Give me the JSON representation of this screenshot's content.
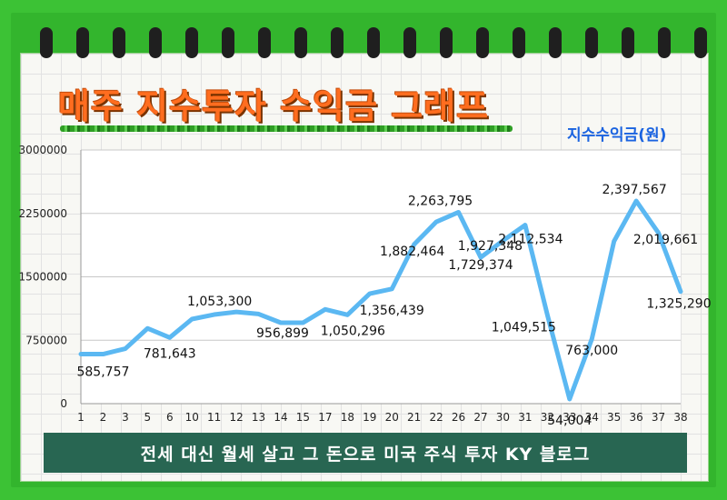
{
  "title": "매주 지수투자 수익금 그래프",
  "unit_label": "지수수익금(원)",
  "footer": "전세 대신 월세 살고 그 돈으로 미국 주식 투자 KY 블로그",
  "colors": {
    "background": "#3cc235",
    "line": "#5bb8f2",
    "title": "#ff6d1f",
    "unit": "#1a63e0",
    "footer_bg": "#286652"
  },
  "chart_data": {
    "type": "line",
    "categories": [
      "1",
      "2",
      "3",
      "5",
      "6",
      "10",
      "11",
      "12",
      "13",
      "14",
      "15",
      "17",
      "18",
      "19",
      "20",
      "21",
      "22",
      "26",
      "27",
      "30",
      "31",
      "32",
      "33",
      "34",
      "35",
      "36",
      "37",
      "38"
    ],
    "series": [
      {
        "values": [
          585757,
          585757,
          650000,
          890000,
          781643,
          1000000,
          1053300,
          1085000,
          1060000,
          956899,
          956899,
          1115000,
          1050296,
          1300000,
          1356439,
          1882464,
          2150000,
          2263795,
          1729374,
          1927348,
          2112534,
          1049515,
          54004,
          763000,
          1920000,
          2397567,
          2019661,
          1325290
        ]
      }
    ],
    "data_labels": [
      {
        "index": 1,
        "text": "585,757"
      },
      {
        "index": 4,
        "text": "781,643"
      },
      {
        "index": 6,
        "text": "1,053,300"
      },
      {
        "index": 9,
        "text": "956,899"
      },
      {
        "index": 12,
        "text": "1,050,296"
      },
      {
        "index": 14,
        "text": "1,356,439"
      },
      {
        "index": 15,
        "text": "1,882,464"
      },
      {
        "index": 17,
        "text": "2,263,795"
      },
      {
        "index": 18,
        "text": "1,729,374"
      },
      {
        "index": 19,
        "text": "1,927,348"
      },
      {
        "index": 20,
        "text": "2,112,534"
      },
      {
        "index": 21,
        "text": "1,049,515"
      },
      {
        "index": 22,
        "text": "54,004"
      },
      {
        "index": 23,
        "text": "763,000"
      },
      {
        "index": 25,
        "text": "2,397,567"
      },
      {
        "index": 26,
        "text": "2,019,661"
      },
      {
        "index": 27,
        "text": "1,325,290"
      }
    ],
    "y_ticks": [
      "0",
      "750000",
      "1500000",
      "2250000",
      "3000000"
    ],
    "ylim": [
      0,
      3000000
    ],
    "grid": true
  }
}
